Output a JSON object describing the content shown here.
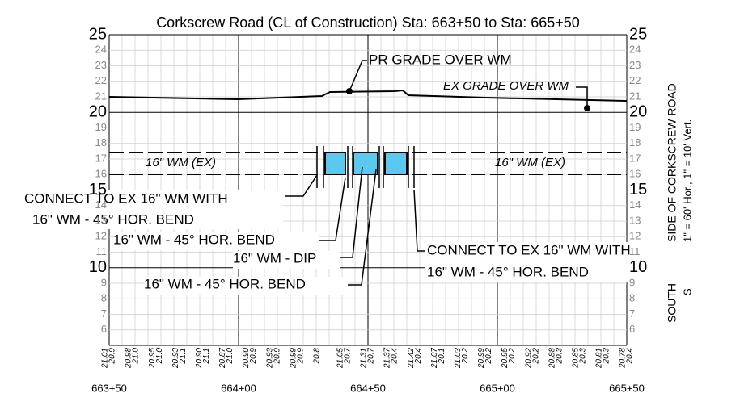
{
  "title": "Corkscrew Road (CL of Construction) Sta: 663+50 to Sta: 665+50",
  "elevations": [
    "25",
    "24",
    "23",
    "22",
    "21",
    "20",
    "19",
    "18",
    "17",
    "16",
    "15",
    "14",
    "13",
    "12",
    "11",
    "10",
    "9",
    "8",
    "7",
    "6"
  ],
  "annotations": {
    "pr_grade": "PR GRADE OVER WM",
    "ex_grade": "EX GRADE OVER WM",
    "wm_left": "16\" WM (EX)",
    "wm_right": "16\" WM (EX)",
    "connect_left_1": "CONNECT TO EX 16\" WM WITH",
    "connect_left_2": "16\" WM - 45° HOR. BEND",
    "bend_1": "16\" WM - 45° HOR. BEND",
    "dip": "16\" WM - DIP",
    "bend_2": "16\" WM - 45° HOR. BEND",
    "connect_right_1": "CONNECT TO EX 16\" WM WITH",
    "connect_right_2": "16\" WM - 45° HOR. BEND"
  },
  "side": {
    "road": "SIDE OF CORKSCREW ROAD",
    "south": "SOUTH",
    "scale": "1\" = 60' Hor., 1\" =  10' Vert.",
    "s": "S"
  },
  "bottom_labels": [
    [
      "21.01",
      "20.9"
    ],
    [
      "20.98",
      "21.0"
    ],
    [
      "20.95",
      "21.0"
    ],
    [
      "20.93",
      "21.1"
    ],
    [
      "20.90",
      "21.1"
    ],
    [
      "20.87",
      "21.0"
    ],
    [
      "20.90",
      "20.9"
    ],
    [
      "20.93",
      "20.9"
    ],
    [
      "20.99",
      "20.9"
    ],
    [
      "20.8",
      ""
    ],
    [
      "21.05",
      "20.7"
    ],
    [
      "21.31",
      "20.7"
    ],
    [
      "21.37",
      "20.4"
    ],
    [
      "21.42",
      "20.4"
    ],
    [
      "21.07",
      "20.1"
    ],
    [
      "21.03",
      "20.2"
    ],
    [
      "20.99",
      "20.2"
    ],
    [
      "20.95",
      "20.2"
    ],
    [
      "20.92",
      "20.2"
    ],
    [
      "20.88",
      "20.3"
    ],
    [
      "20.85",
      "20.3"
    ],
    [
      "20.81",
      "20.3"
    ],
    [
      "20.78",
      "20.4"
    ]
  ],
  "stations": [
    "663+50",
    "664+00",
    "664+50",
    "665+00",
    "665+50"
  ]
}
